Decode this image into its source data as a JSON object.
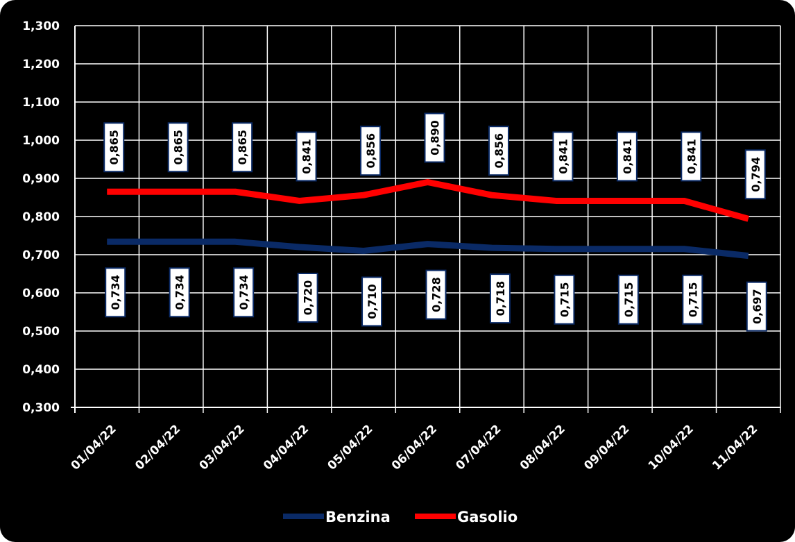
{
  "chart_data": {
    "type": "line",
    "title": "",
    "xlabel": "",
    "ylabel": "",
    "categories": [
      "01/04/22",
      "02/04/22",
      "03/04/22",
      "04/04/22",
      "05/04/22",
      "06/04/22",
      "07/04/22",
      "08/04/22",
      "09/04/22",
      "10/04/22",
      "11/04/22"
    ],
    "ylim": [
      0.3,
      1.3
    ],
    "yticks": [
      "0,300",
      "0,400",
      "0,500",
      "0,600",
      "0,700",
      "0,800",
      "0,900",
      "1,000",
      "1,100",
      "1,200",
      "1,300"
    ],
    "grid": true,
    "legend_position": "bottom",
    "series": [
      {
        "name": "Benzina",
        "color": "#0a2a66",
        "values": [
          0.734,
          0.734,
          0.734,
          0.72,
          0.71,
          0.728,
          0.718,
          0.715,
          0.715,
          0.715,
          0.697
        ],
        "labels": [
          "0,734",
          "0,734",
          "0,734",
          "0,720",
          "0,710",
          "0,728",
          "0,718",
          "0,715",
          "0,715",
          "0,715",
          "0,697"
        ]
      },
      {
        "name": "Gasolio",
        "color": "#ff0000",
        "values": [
          0.865,
          0.865,
          0.865,
          0.841,
          0.856,
          0.89,
          0.856,
          0.841,
          0.841,
          0.841,
          0.794
        ],
        "labels": [
          "0,865",
          "0,865",
          "0,865",
          "0,841",
          "0,856",
          "0,890",
          "0,856",
          "0,841",
          "0,841",
          "0,841",
          "0,794"
        ]
      }
    ]
  }
}
